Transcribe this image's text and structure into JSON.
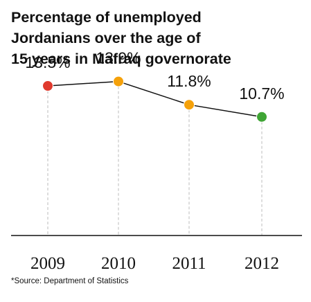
{
  "chart_data": {
    "type": "line",
    "title_lines": [
      "Percentage of unemployed",
      "Jordanians over the age of",
      "15 years in Mafraq governorate"
    ],
    "categories": [
      "2009",
      "2010",
      "2011",
      "2012"
    ],
    "values": [
      13.5,
      13.9,
      11.8,
      10.7
    ],
    "value_labels": [
      "13.5%",
      "13.9%",
      "11.8%",
      "10.7%"
    ],
    "point_colors": [
      "#e03a2e",
      "#f5a10a",
      "#f5a10a",
      "#3fa535"
    ],
    "line_color": "#111111",
    "axis_color": "#111111",
    "guide_color": "#bbbbbb",
    "ylim": [
      0,
      15.5
    ],
    "grid": false,
    "xlabel": "",
    "ylabel": ""
  },
  "footnote": "*Source: Department of Statistics"
}
